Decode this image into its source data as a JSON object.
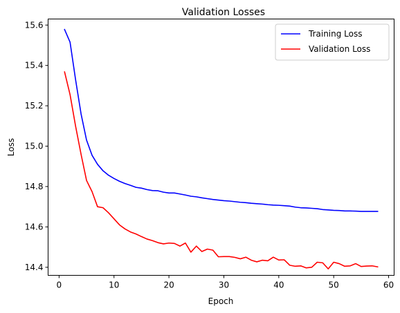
{
  "chart_data": {
    "type": "line",
    "title": "Validation Losses",
    "xlabel": "Epoch",
    "ylabel": "Loss",
    "xlim": [
      -2,
      61
    ],
    "ylim": [
      14.36,
      15.63
    ],
    "xticks": [
      0,
      10,
      20,
      30,
      40,
      50,
      60
    ],
    "yticks": [
      14.4,
      14.6,
      14.8,
      15.0,
      15.2,
      15.4,
      15.6
    ],
    "ytick_labels": [
      "14.4",
      "14.6",
      "14.8",
      "15.0",
      "15.2",
      "15.4",
      "15.6"
    ],
    "grid": false,
    "legend": "top-right",
    "x": [
      1,
      2,
      3,
      4,
      5,
      6,
      7,
      8,
      9,
      10,
      11,
      12,
      13,
      14,
      15,
      16,
      17,
      18,
      19,
      20,
      21,
      22,
      23,
      24,
      25,
      26,
      27,
      28,
      29,
      30,
      31,
      32,
      33,
      34,
      35,
      36,
      37,
      38,
      39,
      40,
      41,
      42,
      43,
      44,
      45,
      46,
      47,
      48,
      49,
      50,
      51,
      52,
      53,
      54,
      55,
      56,
      57,
      58
    ],
    "series": [
      {
        "name": "Training Loss",
        "color": "#0000ff",
        "values": [
          15.578,
          15.515,
          15.33,
          15.16,
          15.03,
          14.955,
          14.91,
          14.878,
          14.856,
          14.84,
          14.826,
          14.815,
          14.806,
          14.796,
          14.792,
          14.785,
          14.78,
          14.779,
          14.772,
          14.768,
          14.768,
          14.763,
          14.758,
          14.752,
          14.749,
          14.744,
          14.74,
          14.736,
          14.733,
          14.73,
          14.728,
          14.725,
          14.722,
          14.72,
          14.717,
          14.715,
          14.713,
          14.71,
          14.708,
          14.707,
          14.705,
          14.703,
          14.698,
          14.695,
          14.694,
          14.692,
          14.69,
          14.686,
          14.684,
          14.682,
          14.681,
          14.679,
          14.679,
          14.678,
          14.677,
          14.677,
          14.677,
          14.677
        ]
      },
      {
        "name": "Validation Loss",
        "color": "#ff0000",
        "values": [
          15.368,
          15.255,
          15.1,
          14.96,
          14.83,
          14.775,
          14.7,
          14.695,
          14.67,
          14.64,
          14.61,
          14.59,
          14.575,
          14.565,
          14.552,
          14.54,
          14.532,
          14.522,
          14.516,
          14.52,
          14.518,
          14.505,
          14.52,
          14.475,
          14.505,
          14.478,
          14.49,
          14.485,
          14.452,
          14.453,
          14.453,
          14.449,
          14.442,
          14.45,
          14.435,
          14.427,
          14.435,
          14.432,
          14.45,
          14.436,
          14.437,
          14.41,
          14.405,
          14.407,
          14.397,
          14.4,
          14.425,
          14.422,
          14.392,
          14.425,
          14.418,
          14.405,
          14.407,
          14.418,
          14.404,
          14.406,
          14.407,
          14.402
        ]
      }
    ]
  }
}
